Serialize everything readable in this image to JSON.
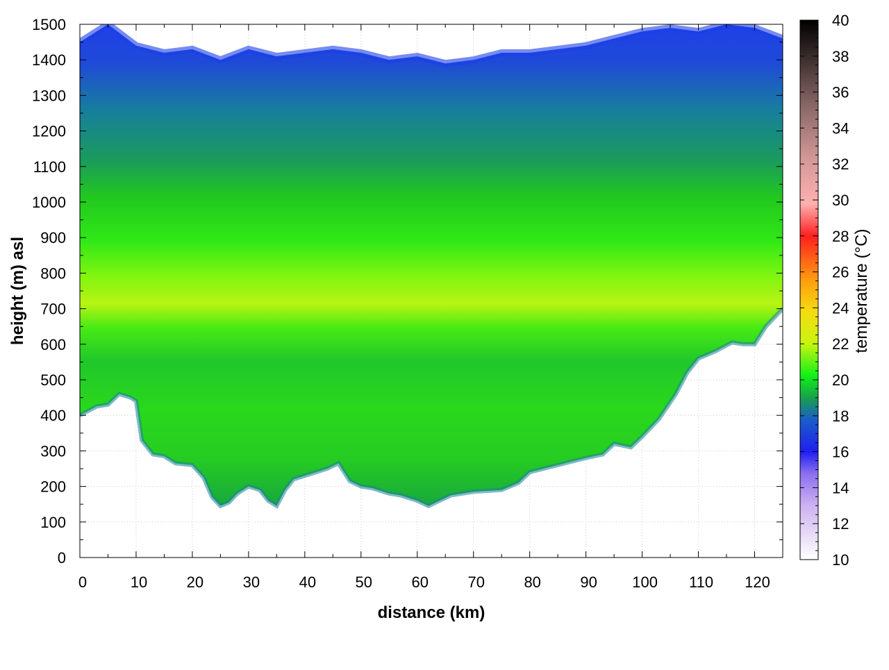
{
  "chart_data": {
    "type": "heatmap",
    "title": "",
    "xlabel": "distance (km)",
    "ylabel": "height (m) asl",
    "xlim": [
      0,
      125
    ],
    "ylim": [
      0,
      1500
    ],
    "xticks": [
      0,
      10,
      20,
      30,
      40,
      50,
      60,
      70,
      80,
      90,
      100,
      110,
      120
    ],
    "yticks": [
      0,
      100,
      200,
      300,
      400,
      500,
      600,
      700,
      800,
      900,
      1000,
      1100,
      1200,
      1300,
      1400,
      1500
    ],
    "grid": true,
    "colorbar": {
      "label": "temperature (°C)",
      "range": [
        10,
        40
      ],
      "ticks": [
        10,
        12,
        14,
        16,
        18,
        20,
        22,
        24,
        26,
        28,
        30,
        32,
        34,
        36,
        38,
        40
      ]
    },
    "series": [
      {
        "values_description": "lower data boundary (m)",
        "x": [
          0,
          3,
          5,
          7,
          9,
          10,
          11,
          13,
          15,
          17,
          20,
          22,
          23.5,
          25,
          26.5,
          28,
          30,
          32,
          33.5,
          35,
          36.5,
          38,
          40,
          42,
          44,
          46,
          48,
          50,
          52,
          55,
          57,
          60,
          62,
          64,
          66,
          70,
          75,
          78,
          80,
          85,
          90,
          93,
          95,
          98,
          100,
          103,
          106,
          108,
          110,
          113,
          116,
          118,
          120,
          122,
          125
        ],
        "values": [
          400,
          425,
          430,
          460,
          450,
          440,
          330,
          290,
          285,
          265,
          260,
          225,
          170,
          145,
          155,
          180,
          200,
          190,
          160,
          145,
          190,
          220,
          230,
          240,
          250,
          265,
          215,
          200,
          195,
          180,
          175,
          160,
          145,
          160,
          175,
          185,
          190,
          210,
          240,
          260,
          280,
          290,
          320,
          310,
          340,
          390,
          460,
          520,
          560,
          580,
          605,
          600,
          600,
          650,
          700
        ]
      },
      {
        "values_description": "upper data boundary (m)",
        "x": [
          0,
          5,
          10,
          15,
          20,
          25,
          30,
          35,
          40,
          45,
          50,
          55,
          60,
          65,
          70,
          75,
          80,
          85,
          90,
          95,
          100,
          105,
          110,
          115,
          120,
          125
        ],
        "values": [
          1450,
          1500,
          1440,
          1420,
          1430,
          1400,
          1430,
          1410,
          1420,
          1430,
          1420,
          1400,
          1410,
          1390,
          1400,
          1420,
          1420,
          1430,
          1440,
          1460,
          1480,
          1490,
          1480,
          1500,
          1490,
          1460
        ]
      }
    ]
  }
}
